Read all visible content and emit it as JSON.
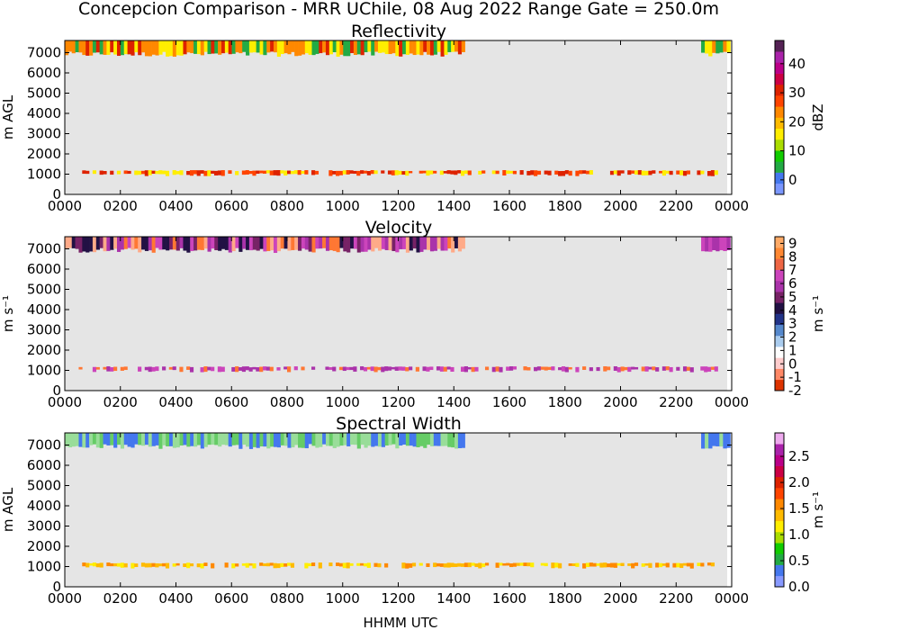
{
  "chart_data": {
    "title": "Concepcion Comparison - MRR UChile, 08 Aug 2022 Range Gate = 250.0m",
    "xlabel": "HHMM UTC",
    "x_ticks": [
      "0000",
      "0200",
      "0400",
      "0600",
      "0800",
      "1000",
      "1200",
      "1400",
      "1600",
      "1800",
      "2000",
      "2200",
      "0000"
    ],
    "x_hours": [
      0,
      2,
      4,
      6,
      8,
      10,
      12,
      14,
      16,
      18,
      20,
      22,
      24
    ],
    "y_ticks": [
      0,
      1000,
      2000,
      3000,
      4000,
      5000,
      6000,
      7000
    ],
    "panels": [
      {
        "type": "heatmap",
        "title": "Reflectivity",
        "ylabel": "m AGL",
        "colorbar_label": "dBZ",
        "cbar_range": [
          -5,
          48
        ],
        "cbar_ticks": [
          "0",
          "10",
          "20",
          "30",
          "40"
        ],
        "cbar_tick_values": [
          0,
          10,
          20,
          30,
          40
        ],
        "colors": [
          "#7b97ff",
          "#4477ee",
          "#22aa44",
          "#11cc00",
          "#aadd00",
          "#ffee00",
          "#ffbb00",
          "#ff8800",
          "#ff4400",
          "#dd2200",
          "#cc0044",
          "#bb0088",
          "#aa22aa",
          "#552255"
        ],
        "layers": [
          {
            "t0": 0.0,
            "t1": 14.4,
            "h0": 6800,
            "h1": 7600,
            "c": [
              "#22aa44",
              "#ffee00",
              "#ff8800",
              "#dd2200"
            ]
          },
          {
            "t0": 22.9,
            "t1": 23.95,
            "h0": 6800,
            "h1": 7600,
            "c": [
              "#22aa44",
              "#ffee00",
              "#ff8800"
            ]
          },
          {
            "t0": 0.5,
            "t1": 23.5,
            "h0": 900,
            "h1": 1200,
            "c": [
              "#dd2200",
              "#ff4400",
              "#ffee00"
            ]
          }
        ]
      },
      {
        "type": "heatmap",
        "title": "Velocity",
        "ylabel": "m s⁻¹",
        "colorbar_label": "m s⁻¹",
        "cbar_range": [
          -2,
          9.5
        ],
        "cbar_ticks": [
          "9",
          "8",
          "7",
          "6",
          "5",
          "4",
          "3",
          "2",
          "1",
          "0",
          "-1",
          "-2"
        ],
        "cbar_tick_values": [
          9,
          8,
          7,
          6,
          5,
          4,
          3,
          2,
          1,
          0,
          -1,
          -2
        ],
        "colors": [
          "#dd3300",
          "#ff8866",
          "#ffcccc",
          "#ffffff",
          "#aaccee",
          "#5588cc",
          "#223388",
          "#221144",
          "#772266",
          "#aa33aa",
          "#cc44bb",
          "#ee6644",
          "#ff8833",
          "#ffaa66"
        ],
        "layers": [
          {
            "t0": 0.0,
            "t1": 14.4,
            "h0": 6800,
            "h1": 7600,
            "c": [
              "#ff7733",
              "#cc44bb",
              "#aa33aa",
              "#221144",
              "#772266",
              "#ffaa88"
            ]
          },
          {
            "t0": 22.9,
            "t1": 23.95,
            "h0": 6800,
            "h1": 7600,
            "c": [
              "#aa33aa",
              "#cc44bb"
            ]
          },
          {
            "t0": 0.5,
            "t1": 23.5,
            "h0": 900,
            "h1": 1200,
            "c": [
              "#ff7733",
              "#cc44bb",
              "#aa33aa"
            ]
          }
        ]
      },
      {
        "type": "heatmap",
        "title": "Spectral Width",
        "ylabel": "m AGL",
        "colorbar_label": "m s⁻¹",
        "cbar_range": [
          0,
          2.95
        ],
        "cbar_ticks": [
          "0.0",
          "0.5",
          "1.0",
          "1.5",
          "2.0",
          "2.5"
        ],
        "cbar_tick_values": [
          0.0,
          0.5,
          1.0,
          1.5,
          2.0,
          2.5
        ],
        "colors": [
          "#8899ff",
          "#4477ee",
          "#22aa44",
          "#11cc00",
          "#aadd00",
          "#ffee00",
          "#ffbb00",
          "#ff8800",
          "#ff4400",
          "#dd2200",
          "#cc0044",
          "#bb0088",
          "#aa22aa",
          "#eeaaee"
        ],
        "layers": [
          {
            "t0": 0.0,
            "t1": 14.4,
            "h0": 6800,
            "h1": 7600,
            "c": [
              "#99dd99",
              "#4477ee",
              "#66cc66"
            ]
          },
          {
            "t0": 22.9,
            "t1": 23.95,
            "h0": 6800,
            "h1": 7600,
            "c": [
              "#4477ee",
              "#99dd99"
            ]
          },
          {
            "t0": 0.5,
            "t1": 23.5,
            "h0": 900,
            "h1": 1200,
            "c": [
              "#ffbb00",
              "#ffee00",
              "#ff8800"
            ]
          }
        ]
      }
    ],
    "y_range": [
      0,
      7600
    ],
    "x_range": [
      0,
      24
    ],
    "background": "#e5e5e5"
  }
}
